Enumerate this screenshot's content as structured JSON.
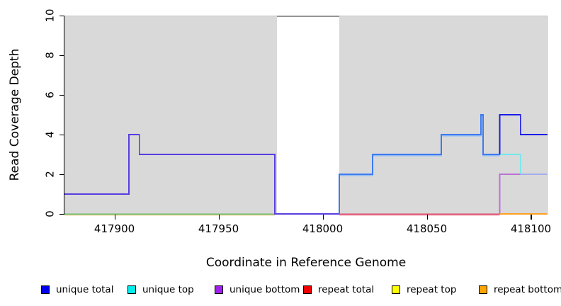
{
  "figure": {
    "xlabel": "Coordinate in Reference Genome",
    "ylabel": "Read Coverage Depth"
  },
  "legend": {
    "items": [
      {
        "label": "unique total",
        "color": "#0000ee"
      },
      {
        "label": "unique top",
        "color": "#00eeee"
      },
      {
        "label": "unique bottom",
        "color": "#a020f0"
      },
      {
        "label": "repeat total",
        "color": "#ee0000"
      },
      {
        "label": "repeat top",
        "color": "#ffff00"
      },
      {
        "label": "repeat bottom",
        "color": "#ffa500"
      }
    ]
  },
  "chart_data": {
    "type": "line",
    "title": "",
    "xlabel": "Coordinate in Reference Genome",
    "ylabel": "Read Coverage Depth",
    "xlim": [
      417876,
      418108
    ],
    "ylim": [
      0,
      10
    ],
    "x_ticks": [
      417900,
      417950,
      418000,
      418050,
      418100
    ],
    "y_ticks": [
      0,
      2,
      4,
      6,
      8,
      10
    ],
    "plot_background": "#d9d9d9",
    "unshaded_region": [
      417978,
      418008
    ],
    "grid": false,
    "legend_position": "bottom",
    "series": [
      {
        "name": "unique total",
        "color": "#0000ee",
        "steps": [
          [
            417876,
            1
          ],
          [
            417907,
            4
          ],
          [
            417912,
            3
          ],
          [
            417977,
            0
          ],
          [
            418008,
            2
          ],
          [
            418024,
            3
          ],
          [
            418057,
            4
          ],
          [
            418076,
            5
          ],
          [
            418077,
            3
          ],
          [
            418085,
            5
          ],
          [
            418095,
            4
          ],
          [
            418108,
            4
          ]
        ]
      },
      {
        "name": "unique top",
        "color": "#00eeee",
        "steps": [
          [
            417876,
            0
          ],
          [
            418008,
            2
          ],
          [
            418024,
            3
          ],
          [
            418057,
            4
          ],
          [
            418076,
            5
          ],
          [
            418077,
            3
          ],
          [
            418095,
            2
          ],
          [
            418108,
            2
          ]
        ]
      },
      {
        "name": "unique bottom",
        "color": "#a020f0",
        "steps": [
          [
            417876,
            1
          ],
          [
            417907,
            4
          ],
          [
            417912,
            3
          ],
          [
            417977,
            0
          ],
          [
            418085,
            2
          ],
          [
            418108,
            2
          ]
        ]
      },
      {
        "name": "repeat total",
        "color": "#ee0000",
        "steps": [
          [
            417876,
            0
          ],
          [
            418108,
            0
          ]
        ]
      },
      {
        "name": "repeat top",
        "color": "#ffff00",
        "steps": [
          [
            417876,
            0
          ],
          [
            418108,
            0
          ]
        ]
      },
      {
        "name": "repeat bottom",
        "color": "#ffa500",
        "steps": [
          [
            417876,
            0
          ],
          [
            418108,
            0
          ]
        ]
      }
    ],
    "rendered_lines": [
      {
        "name": "zero-line-left-underlay",
        "color": "#eed9a6",
        "width": 1.4,
        "dy": 1.6,
        "points": [
          [
            417876,
            0
          ],
          [
            417977,
            0
          ]
        ]
      },
      {
        "name": "zero-line-left-green",
        "color": "#67b967",
        "width": 1.5,
        "dy": 0,
        "points": [
          [
            417876,
            0
          ],
          [
            417977,
            0
          ]
        ]
      },
      {
        "name": "unique-bottom-left",
        "color": "#5a3ce0",
        "width": 1.8,
        "dy": 0,
        "points": [
          [
            417876,
            1
          ],
          [
            417907,
            1
          ],
          [
            417907,
            4
          ],
          [
            417912,
            4
          ],
          [
            417912,
            3
          ],
          [
            417977,
            3
          ],
          [
            417977,
            0
          ],
          [
            418008,
            0
          ]
        ]
      },
      {
        "name": "zero-line-mid-underlay",
        "color": "#f3a9bd",
        "width": 1.4,
        "dy": 1.6,
        "points": [
          [
            418008,
            0
          ],
          [
            418085,
            0
          ]
        ]
      },
      {
        "name": "zero-line-mid-crimson",
        "color": "#dc4766",
        "width": 1.5,
        "dy": 0,
        "points": [
          [
            418008,
            0
          ],
          [
            418085,
            0
          ]
        ]
      },
      {
        "name": "unique-total-mid-underlay",
        "color": "#90b9f4",
        "width": 1.6,
        "dy": 1.6,
        "points": [
          [
            418008,
            2
          ],
          [
            418024,
            2
          ],
          [
            418024,
            3
          ],
          [
            418057,
            3
          ],
          [
            418057,
            4
          ],
          [
            418076,
            4
          ],
          [
            418076,
            5
          ],
          [
            418077,
            5
          ],
          [
            418077,
            3
          ],
          [
            418085,
            3
          ]
        ]
      },
      {
        "name": "unique-total-mid",
        "color": "#3c7bef",
        "width": 1.8,
        "dy": 0,
        "points": [
          [
            418008,
            0
          ],
          [
            418008,
            2
          ],
          [
            418024,
            2
          ],
          [
            418024,
            3
          ],
          [
            418057,
            3
          ],
          [
            418057,
            4
          ],
          [
            418076,
            4
          ],
          [
            418076,
            5
          ],
          [
            418077,
            5
          ],
          [
            418077,
            3
          ],
          [
            418085,
            3
          ]
        ]
      },
      {
        "name": "unique-bottom-right",
        "color": "#bc6fd6",
        "width": 1.7,
        "dy": 0,
        "points": [
          [
            418085,
            0
          ],
          [
            418085,
            2
          ],
          [
            418095,
            2
          ]
        ]
      },
      {
        "name": "unique-top-right",
        "color": "#6fe9ec",
        "width": 1.7,
        "dy": 0,
        "points": [
          [
            418085,
            3
          ],
          [
            418095,
            3
          ],
          [
            418095,
            2
          ]
        ]
      },
      {
        "name": "overlap-top-bottom-right",
        "color": "#a3adee",
        "width": 1.8,
        "dy": 0,
        "points": [
          [
            418095,
            2
          ],
          [
            418108,
            2
          ]
        ]
      },
      {
        "name": "unique-total-right",
        "color": "#1b1be8",
        "width": 1.8,
        "dy": 0,
        "points": [
          [
            418085,
            3
          ],
          [
            418085,
            5
          ],
          [
            418095,
            5
          ],
          [
            418095,
            4
          ],
          [
            418108,
            4
          ]
        ]
      },
      {
        "name": "zero-line-right-orange",
        "color": "#ffa023",
        "width": 2.0,
        "dy": 0,
        "points": [
          [
            418085,
            0
          ],
          [
            418108,
            0
          ]
        ]
      }
    ]
  }
}
